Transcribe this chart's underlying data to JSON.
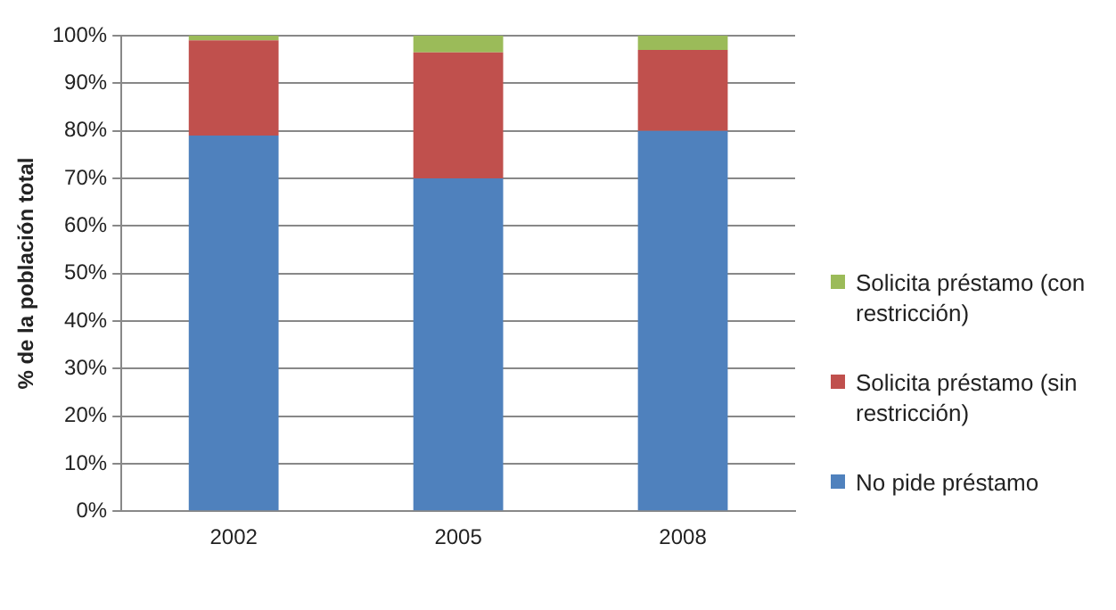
{
  "chart_data": {
    "type": "bar",
    "stacked": true,
    "ylabel": "% de la población total",
    "categories": [
      "2002",
      "2005",
      "2008"
    ],
    "series": [
      {
        "name": "No pide préstamo",
        "color": "#4f81bd",
        "values": [
          79,
          70,
          80
        ]
      },
      {
        "name": "Solicita préstamo (sin restricción)",
        "color": "#c0504d",
        "values": [
          20,
          26.5,
          17
        ]
      },
      {
        "name": "Solicita préstamo (con restricción)",
        "color": "#9bbb59",
        "values": [
          1,
          3.5,
          3
        ]
      }
    ],
    "ylim": [
      0,
      100
    ],
    "yticks": [
      {
        "value": 0,
        "label": "0%"
      },
      {
        "value": 10,
        "label": "10%"
      },
      {
        "value": 20,
        "label": "20%"
      },
      {
        "value": 30,
        "label": "30%"
      },
      {
        "value": 40,
        "label": "40%"
      },
      {
        "value": 50,
        "label": "50%"
      },
      {
        "value": 60,
        "label": "60%"
      },
      {
        "value": 70,
        "label": "70%"
      },
      {
        "value": 80,
        "label": "80%"
      },
      {
        "value": 90,
        "label": "90%"
      },
      {
        "value": 100,
        "label": "100%"
      }
    ],
    "grid": "y",
    "legend": "right"
  }
}
